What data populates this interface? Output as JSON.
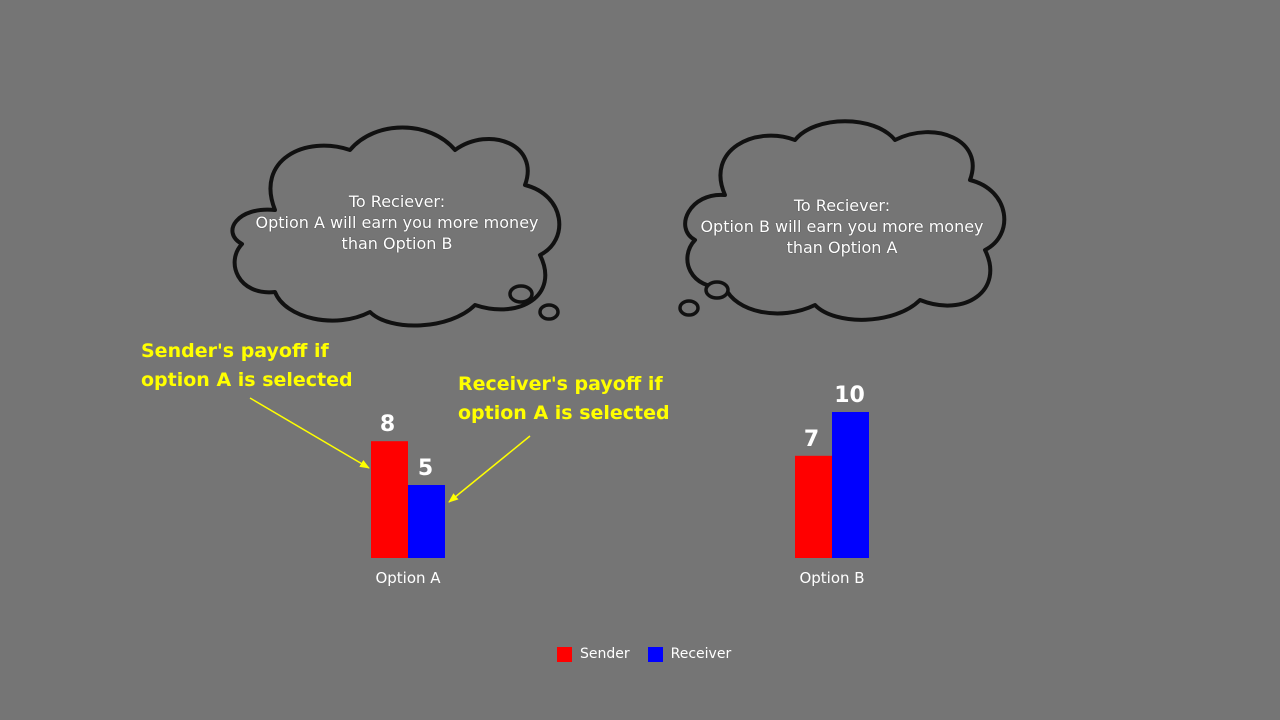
{
  "clouds": {
    "left": {
      "line1": "To Reciever:",
      "line2": "Option A will earn you more money",
      "line3": "than Option B"
    },
    "right": {
      "line1": "To Reciever:",
      "line2": "Option B will earn you more money",
      "line3": "than Option A"
    }
  },
  "annotations": {
    "sender": {
      "line1": "Sender's payoff if",
      "line2": "option A is selected"
    },
    "receiver": {
      "line1": "Receiver's payoff if",
      "line2": "option A is selected"
    }
  },
  "chart_data": {
    "type": "bar",
    "categories": [
      "Option A",
      "Option B"
    ],
    "series": [
      {
        "name": "Sender",
        "values": [
          8,
          7
        ],
        "color": "#ff0000"
      },
      {
        "name": "Receiver",
        "values": [
          5,
          10
        ],
        "color": "#0000ff"
      }
    ],
    "legend": [
      "Sender",
      "Receiver"
    ],
    "legend_position": "bottom",
    "grid": false
  }
}
